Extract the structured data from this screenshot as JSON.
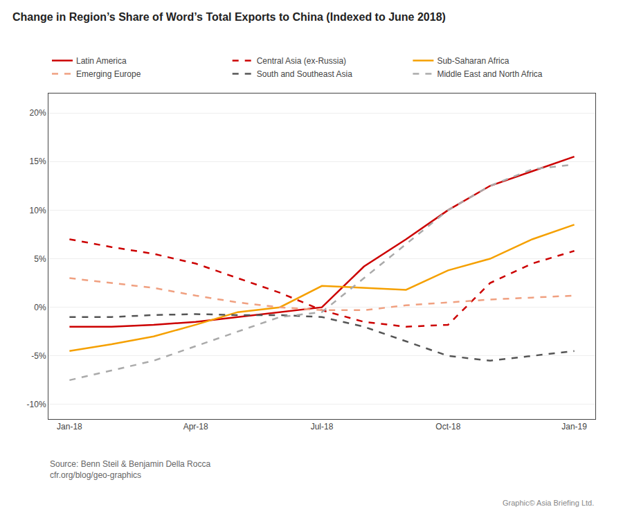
{
  "chart_data": {
    "type": "line",
    "title": "Change in Region’s Share of Word’s Total Exports to China (Indexed to June 2018)",
    "annotations": [
      "Source: Benn Steil & Benjamin Della Rocca\ncfr.org/blog/geo-graphics",
      "Graphic© Asia Briefing Ltd."
    ],
    "categories": [
      "Jan-18",
      null,
      null,
      "Apr-18",
      null,
      null,
      "Jul-18",
      null,
      null,
      "Oct-18",
      null,
      null,
      "Jan-19"
    ],
    "series": [
      {
        "name": "Latin America",
        "color": "#cc0000",
        "line_style": "solid",
        "values": [
          -2.0,
          -2.0,
          -1.8,
          -1.5,
          -1.0,
          -0.5,
          0.0,
          4.2,
          7.0,
          10.0,
          12.5,
          14.0,
          15.5
        ]
      },
      {
        "name": "Central Asia (ex-Russia)",
        "color": "#cc0000",
        "line_style": "dashed",
        "values": [
          7.0,
          6.2,
          5.5,
          4.5,
          3.0,
          1.5,
          -0.3,
          -1.5,
          -2.0,
          -1.8,
          2.5,
          4.5,
          5.8
        ]
      },
      {
        "name": "Sub-Saharan Africa",
        "color": "#f5a000",
        "line_style": "solid",
        "values": [
          -4.5,
          -3.8,
          -3.0,
          -1.8,
          -0.5,
          0.0,
          2.2,
          2.0,
          1.8,
          3.8,
          5.0,
          7.0,
          8.5
        ]
      },
      {
        "name": "Emerging Europe",
        "color": "#f0a080",
        "line_style": "dashed",
        "values": [
          3.0,
          2.5,
          2.0,
          1.2,
          0.5,
          0.0,
          -0.3,
          -0.3,
          0.2,
          0.5,
          0.8,
          1.0,
          1.2
        ]
      },
      {
        "name": "South and Southeast Asia",
        "color": "#555555",
        "line_style": "dashed",
        "values": [
          -1.0,
          -1.0,
          -0.8,
          -0.7,
          -0.8,
          -0.8,
          -1.0,
          -2.0,
          -3.5,
          -5.0,
          -5.5,
          -5.0,
          -4.5
        ]
      },
      {
        "name": "Middle East and North Africa",
        "color": "#aaaaaa",
        "line_style": "dashed",
        "values": [
          -7.5,
          -6.5,
          -5.5,
          -4.0,
          -2.5,
          -1.0,
          -0.5,
          3.0,
          6.5,
          10.0,
          12.5,
          14.2,
          14.7
        ]
      }
    ],
    "ylim": [
      -11.5,
      22
    ],
    "yticks": [
      {
        "value": -10,
        "label": "-10%"
      },
      {
        "value": -5,
        "label": "-5%"
      },
      {
        "value": 0,
        "label": "0%"
      },
      {
        "value": 5,
        "label": "5%"
      },
      {
        "value": 10,
        "label": "10%"
      },
      {
        "value": 15,
        "label": "15%"
      },
      {
        "value": 20,
        "label": "20%"
      }
    ],
    "grid": true,
    "legend": "top"
  }
}
